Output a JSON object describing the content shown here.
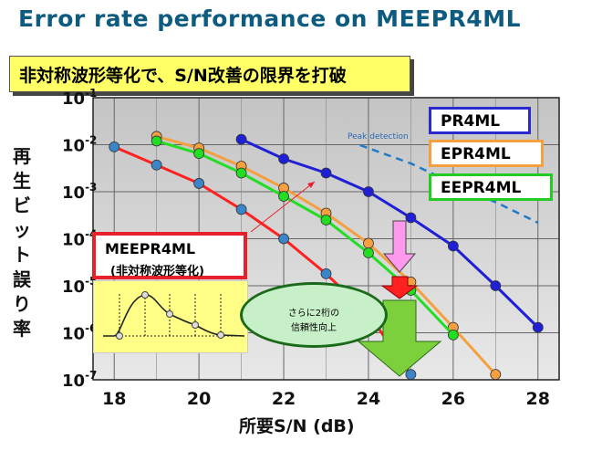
{
  "title": "Error rate performance on MEEPR4ML",
  "subtitle": "非対称波形等化で、S/N改善の限界を打破",
  "ylabel_chars": [
    "再",
    "生",
    "ビ",
    "ッ",
    "ト",
    "誤",
    "り",
    "率"
  ],
  "xlabel": "所要S/N (dB)",
  "legend": {
    "pr4ml": "PR4ML",
    "epr4ml": "EPR4ML",
    "eepr4ml": "EEPR4ML"
  },
  "annotations": {
    "peak": "Peak detection",
    "meepr4ml_name": "MEEPR4ML",
    "meepr4ml_desc": "(非対称波形等化)",
    "oval_line1": "さらに2桁の",
    "oval_line2": "信頼性向上"
  },
  "colors": {
    "pr4ml": "#1f1fd6",
    "epr4ml": "#f5a040",
    "eepr4ml": "#22dd22",
    "meepr4ml": "#ff2020",
    "marker": "#3b84c8",
    "peak": "#1f7ac8"
  },
  "chart_data": {
    "type": "line",
    "xlabel": "所要S/N (dB)",
    "ylabel": "再生ビット誤り率",
    "xlim": [
      17.5,
      28.5
    ],
    "ylim_log10": [
      -7,
      -1
    ],
    "y_scale": "log",
    "x_ticks": [
      18,
      20,
      22,
      24,
      26,
      28
    ],
    "y_tick_labels": [
      "10-1",
      "10-2",
      "10-3",
      "10-4",
      "10-5",
      "10-6",
      "10-7"
    ],
    "series": [
      {
        "name": "PR4ML",
        "x": [
          21,
          22,
          23,
          24,
          25,
          26,
          27,
          28
        ],
        "y": [
          0.013,
          0.005,
          0.0025,
          0.001,
          0.00028,
          7e-05,
          1e-05,
          1.3e-06
        ]
      },
      {
        "name": "EPR4ML",
        "x": [
          19,
          20,
          21,
          22,
          23,
          24,
          25,
          26,
          27
        ],
        "y": [
          0.015,
          0.0085,
          0.0035,
          0.0012,
          0.00035,
          8e-05,
          1.2e-05,
          1.3e-06,
          1.3e-07
        ]
      },
      {
        "name": "EEPR4ML",
        "x": [
          19,
          20,
          21,
          22,
          23,
          24,
          25,
          26
        ],
        "y": [
          0.012,
          0.0065,
          0.0025,
          0.0008,
          0.00025,
          5e-05,
          8e-06,
          9e-07
        ]
      },
      {
        "name": "MEEPR4ML",
        "x": [
          18,
          19,
          20,
          21,
          22,
          23,
          24,
          25
        ],
        "y": [
          0.009,
          0.0037,
          0.0015,
          0.00042,
          0.0001,
          1.8e-05,
          2.5e-06,
          1.3e-07
        ]
      },
      {
        "name": "Peak detection",
        "x": [
          23.8,
          25,
          26,
          27,
          28
        ],
        "y": [
          0.0098,
          0.004,
          0.0015,
          0.0006,
          0.00022
        ]
      }
    ]
  }
}
